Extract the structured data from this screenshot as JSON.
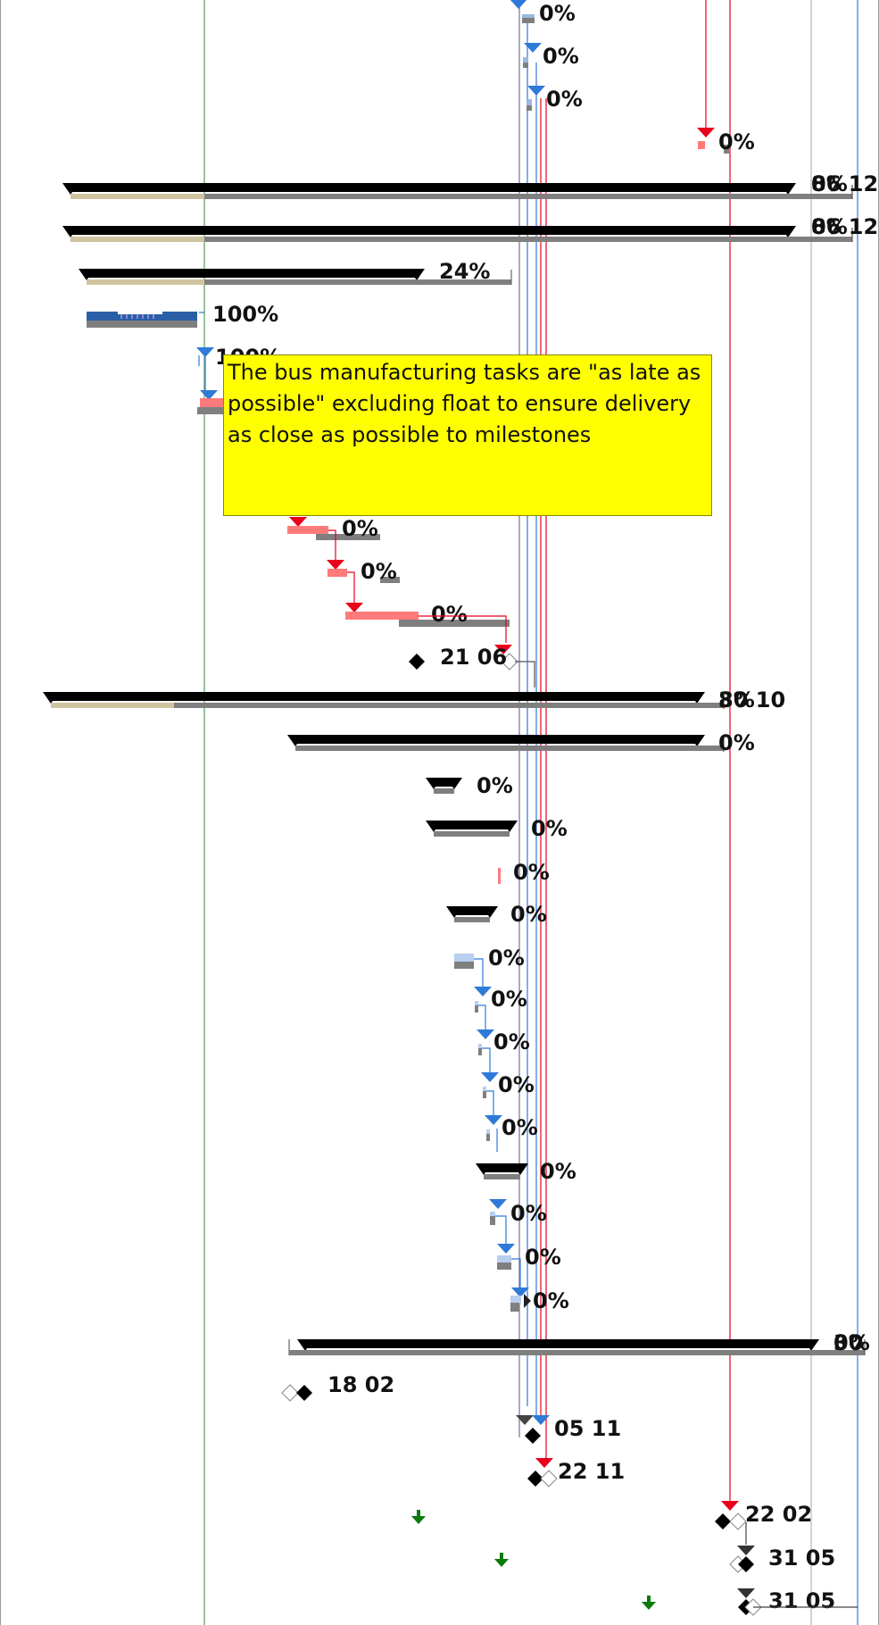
{
  "colors": {
    "summary_bar": "#000000",
    "baseline": "#7f7f7f",
    "progress_tan": "#cfc4a0",
    "critical_task": "#ff7a7a",
    "critical_link": "#e8001c",
    "normal_link": "#2f7ad8",
    "complete_task": "#2a5fa8",
    "note_bg": "#ffff00",
    "deadline_arrow": "#0a7a0a",
    "status_line": "#5a9a5a"
  },
  "note": {
    "text": "The bus manufacturing tasks are \"as late as possible\" excluding float to ensure delivery as close as possible to milestones"
  },
  "rows": [
    {
      "label": "0%",
      "kind": "task"
    },
    {
      "label": "0%",
      "kind": "task"
    },
    {
      "label": "0%",
      "kind": "task"
    },
    {
      "label": "0%",
      "kind": "critical-task"
    },
    {
      "label": "06 12",
      "overlap_label": "8%",
      "kind": "summary"
    },
    {
      "label": "06 12",
      "overlap_label": "8%",
      "kind": "summary"
    },
    {
      "label": "24%",
      "kind": "summary"
    },
    {
      "label": "100%",
      "kind": "complete-task"
    },
    {
      "label": "100%",
      "kind": "task"
    },
    {
      "label": "",
      "kind": "critical-task"
    },
    {
      "label": "",
      "kind": "blank"
    },
    {
      "label": "",
      "kind": "blank"
    },
    {
      "label": "0%",
      "kind": "critical-task"
    },
    {
      "label": "0%",
      "kind": "critical-task"
    },
    {
      "label": "0%",
      "kind": "critical-task"
    },
    {
      "label": "21 06",
      "kind": "milestone"
    },
    {
      "label": "30 10",
      "overlap_label": "8%",
      "kind": "summary"
    },
    {
      "label": "0%",
      "kind": "summary"
    },
    {
      "label": "0%",
      "kind": "summary"
    },
    {
      "label": "0%",
      "kind": "summary"
    },
    {
      "label": "0%",
      "kind": "critical-task"
    },
    {
      "label": "0%",
      "kind": "summary"
    },
    {
      "label": "0%",
      "kind": "task"
    },
    {
      "label": "0%",
      "kind": "task"
    },
    {
      "label": "0%",
      "kind": "task"
    },
    {
      "label": "0%",
      "kind": "task"
    },
    {
      "label": "0%",
      "kind": "task"
    },
    {
      "label": "0%",
      "kind": "summary"
    },
    {
      "label": "0%",
      "kind": "task"
    },
    {
      "label": "0%",
      "kind": "task"
    },
    {
      "label": "0%",
      "kind": "task"
    },
    {
      "label": "0%",
      "overlap_label": "30",
      "kind": "summary"
    },
    {
      "label": "18 02",
      "kind": "milestone"
    },
    {
      "label": "05 11",
      "kind": "milestone"
    },
    {
      "label": "22 11",
      "kind": "milestone"
    },
    {
      "label": "22 02",
      "kind": "milestone"
    },
    {
      "label": "31 05",
      "kind": "milestone"
    },
    {
      "label": "31 05",
      "kind": "milestone"
    }
  ]
}
